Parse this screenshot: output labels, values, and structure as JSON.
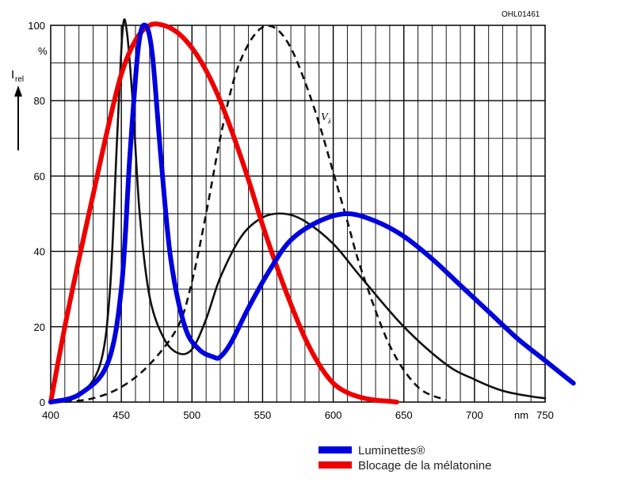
{
  "chart_data": {
    "type": "line",
    "ylabel_main": "I",
    "ylabel_sub": "rel",
    "y_unit_label": "%",
    "x_unit_label": "nm",
    "figure_code": "OHL01461",
    "curve_label_main": "V",
    "curve_label_sub": "λ",
    "xlim": [
      400,
      750
    ],
    "ylim": [
      0,
      100
    ],
    "grid": true,
    "legend_position": "bottom-right",
    "x_ticks": [
      {
        "value": 400,
        "label": "400"
      },
      {
        "value": 450,
        "label": "450"
      },
      {
        "value": 500,
        "label": "500"
      },
      {
        "value": 550,
        "label": "550"
      },
      {
        "value": 600,
        "label": "600"
      },
      {
        "value": 650,
        "label": "650"
      },
      {
        "value": 700,
        "label": "700"
      },
      {
        "value": 750,
        "label": "750"
      }
    ],
    "y_ticks": [
      {
        "value": 0,
        "label": "0"
      },
      {
        "value": 20,
        "label": "20"
      },
      {
        "value": 40,
        "label": "40"
      },
      {
        "value": 60,
        "label": "60"
      },
      {
        "value": 80,
        "label": "80"
      },
      {
        "value": 100,
        "label": "100"
      }
    ],
    "series": [
      {
        "key": "white_led",
        "color": "#111111",
        "style": "solid",
        "x": [
          400,
          420,
          435,
          442,
          447,
          451,
          454,
          458,
          463,
          470,
          480,
          490,
          500,
          510,
          520,
          535,
          550,
          565,
          580,
          600,
          620,
          650,
          680,
          700,
          720,
          740,
          750
        ],
        "y": [
          0,
          2,
          10,
          30,
          70,
          99,
          98,
          80,
          50,
          28,
          17,
          13,
          14,
          22,
          33,
          44,
          49,
          50,
          48,
          42,
          33,
          20,
          10,
          6,
          3,
          1.5,
          1
        ]
      },
      {
        "key": "v_lambda",
        "color": "#111111",
        "style": "dashed",
        "x": [
          410,
          430,
          450,
          470,
          490,
          500,
          510,
          520,
          530,
          540,
          550,
          560,
          570,
          580,
          590,
          600,
          610,
          620,
          640,
          660,
          680
        ],
        "y": [
          0,
          1,
          4,
          10,
          20,
          32,
          50,
          70,
          86,
          95,
          99.5,
          99,
          94,
          85,
          74,
          61,
          48,
          35,
          15,
          4,
          0.5
        ]
      },
      {
        "key": "luminettes",
        "name": "Luminettes®",
        "color": "#0000dd",
        "style": "solid",
        "x": [
          400,
          420,
          440,
          450,
          456,
          462,
          467,
          472,
          478,
          485,
          495,
          505,
          515,
          520,
          528,
          540,
          555,
          570,
          590,
          610,
          630,
          650,
          670,
          690,
          710,
          730,
          750,
          770
        ],
        "y": [
          0,
          2,
          10,
          30,
          65,
          94,
          100,
          92,
          65,
          38,
          20,
          14,
          12,
          12,
          16,
          25,
          35,
          43,
          48,
          50,
          48,
          44,
          38,
          31,
          24,
          17,
          11,
          5
        ]
      },
      {
        "key": "melatonin",
        "name": "Blocage de la mélatonine",
        "color": "#ee0000",
        "style": "solid",
        "x": [
          400,
          410,
          420,
          430,
          440,
          450,
          460,
          470,
          480,
          490,
          500,
          510,
          520,
          530,
          540,
          550,
          560,
          570,
          580,
          590,
          600,
          610,
          620,
          630,
          640,
          645
        ],
        "y": [
          0,
          20,
          38,
          55,
          72,
          87,
          96,
          100,
          100,
          98,
          94,
          88,
          80,
          70,
          59,
          47,
          36,
          26,
          17,
          10,
          5,
          2.5,
          1.2,
          0.5,
          0.2,
          0
        ]
      }
    ],
    "legend": [
      {
        "label": "Luminettes®",
        "color": "#0000dd"
      },
      {
        "label": "Blocage de la mélatonine",
        "color": "#ee0000"
      }
    ]
  }
}
